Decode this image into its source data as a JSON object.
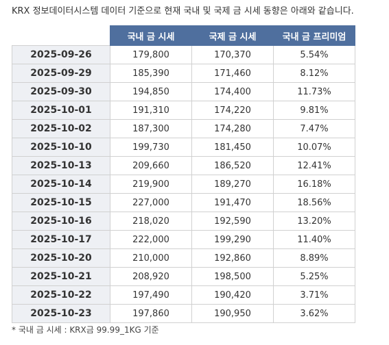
{
  "caption": "KRX 정보데이터시스템 데이터 기준으로 현재 국내 및 국제 금 시세 동향은 아래와 같습니다.",
  "table": {
    "headers": [
      "",
      "국내 금 시세",
      "국제 금 시세",
      "국내 금 프리미엄"
    ],
    "rows": [
      {
        "date": "2025-09-26",
        "domestic": "179,800",
        "international": "170,370",
        "premium": "5.54%"
      },
      {
        "date": "2025-09-29",
        "domestic": "185,390",
        "international": "171,460",
        "premium": "8.12%"
      },
      {
        "date": "2025-09-30",
        "domestic": "194,850",
        "international": "174,400",
        "premium": "11.73%"
      },
      {
        "date": "2025-10-01",
        "domestic": "191,310",
        "international": "174,220",
        "premium": "9.81%"
      },
      {
        "date": "2025-10-02",
        "domestic": "187,300",
        "international": "174,280",
        "premium": "7.47%"
      },
      {
        "date": "2025-10-10",
        "domestic": "199,730",
        "international": "181,450",
        "premium": "10.07%"
      },
      {
        "date": "2025-10-13",
        "domestic": "209,660",
        "international": "186,520",
        "premium": "12.41%"
      },
      {
        "date": "2025-10-14",
        "domestic": "219,900",
        "international": "189,270",
        "premium": "16.18%"
      },
      {
        "date": "2025-10-15",
        "domestic": "227,000",
        "international": "191,470",
        "premium": "18.56%"
      },
      {
        "date": "2025-10-16",
        "domestic": "218,020",
        "international": "192,590",
        "premium": "13.20%"
      },
      {
        "date": "2025-10-17",
        "domestic": "222,000",
        "international": "199,290",
        "premium": "11.40%"
      },
      {
        "date": "2025-10-20",
        "domestic": "210,000",
        "international": "192,860",
        "premium": "8.89%"
      },
      {
        "date": "2025-10-21",
        "domestic": "208,920",
        "international": "198,500",
        "premium": "5.25%"
      },
      {
        "date": "2025-10-22",
        "domestic": "197,490",
        "international": "190,420",
        "premium": "3.71%"
      },
      {
        "date": "2025-10-23",
        "domestic": "197,860",
        "international": "190,950",
        "premium": "3.62%"
      }
    ]
  },
  "footnote": "* 국내 금 시세 : KRX금 99.99_1KG 기준",
  "colors": {
    "header_bg": "#4f6f9e",
    "date_bg": "#eef0f4"
  }
}
